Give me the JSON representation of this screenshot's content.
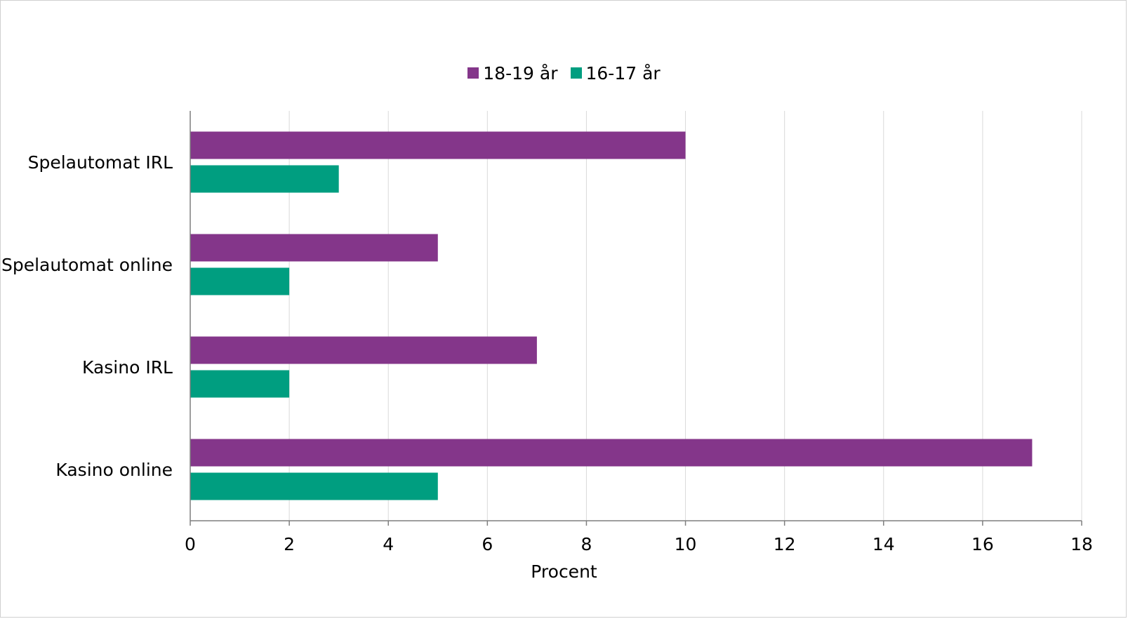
{
  "chart_data": {
    "type": "bar",
    "orientation": "horizontal",
    "categories": [
      "Spelautomat IRL",
      "Spelautomat online",
      "Kasino IRL",
      "Kasino online"
    ],
    "series": [
      {
        "name": "18-19 år",
        "color": "#84368A",
        "values": [
          10,
          5,
          7,
          17
        ]
      },
      {
        "name": "16-17 år",
        "color": "#009E80",
        "values": [
          3,
          2,
          2,
          5
        ]
      }
    ],
    "xlabel": "Procent",
    "ylabel": "",
    "xlim": [
      0,
      18
    ],
    "xticks": [
      "0",
      "2",
      "4",
      "6",
      "8",
      "10",
      "12",
      "14",
      "16",
      "18"
    ],
    "grid": "vertical",
    "legend_position": "top-center"
  }
}
